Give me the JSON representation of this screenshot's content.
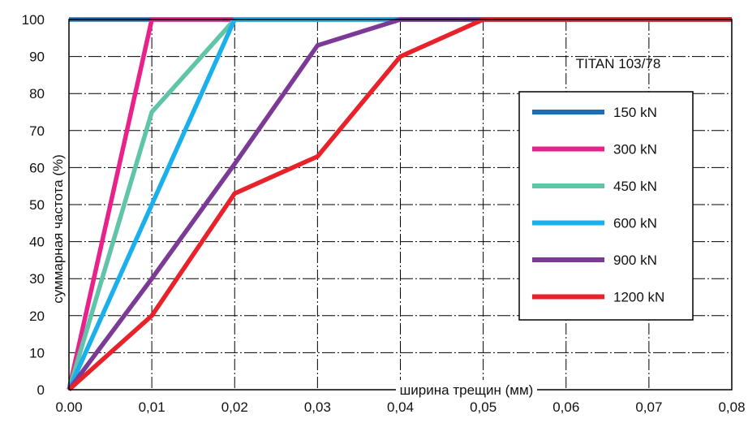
{
  "chart_data": {
    "type": "line",
    "annotation": "TITAN 103/78",
    "xlabel": "ширина трещин (мм)",
    "ylabel": "суммарная частота (%)",
    "xlim": [
      0,
      0.08
    ],
    "ylim": [
      0,
      100
    ],
    "x_ticks": [
      "0.00",
      "0,01",
      "0,02",
      "0,03",
      "0,04",
      "0,05",
      "0,06",
      "0,07",
      "0,08"
    ],
    "y_ticks": [
      "0",
      "10",
      "20",
      "30",
      "40",
      "50",
      "60",
      "70",
      "80",
      "90",
      "100"
    ],
    "grid": true,
    "legend_position": "right",
    "series": [
      {
        "name": "150 kN",
        "color": "#1f6db5",
        "x": [
          0,
          0.08
        ],
        "y": [
          100,
          100
        ]
      },
      {
        "name": "300 kN",
        "color": "#e8228a",
        "x": [
          0,
          0.01,
          0.08
        ],
        "y": [
          0,
          100,
          100
        ]
      },
      {
        "name": "450 kN",
        "color": "#5fc4a8",
        "x": [
          0,
          0.01,
          0.02,
          0.08
        ],
        "y": [
          0,
          75,
          100,
          100
        ]
      },
      {
        "name": "600 kN",
        "color": "#1ab0ec",
        "x": [
          0,
          0.02,
          0.08
        ],
        "y": [
          0,
          100,
          100
        ]
      },
      {
        "name": "900 kN",
        "color": "#7b3a96",
        "x": [
          0,
          0.01,
          0.02,
          0.03,
          0.04,
          0.05,
          0.08
        ],
        "y": [
          0,
          30,
          61,
          93,
          100,
          100,
          100
        ]
      },
      {
        "name": "1200 kN",
        "color": "#e8212a",
        "x": [
          0,
          0.01,
          0.02,
          0.03,
          0.04,
          0.05,
          0.08
        ],
        "y": [
          0,
          20,
          53,
          63,
          90,
          100,
          100
        ]
      }
    ]
  }
}
